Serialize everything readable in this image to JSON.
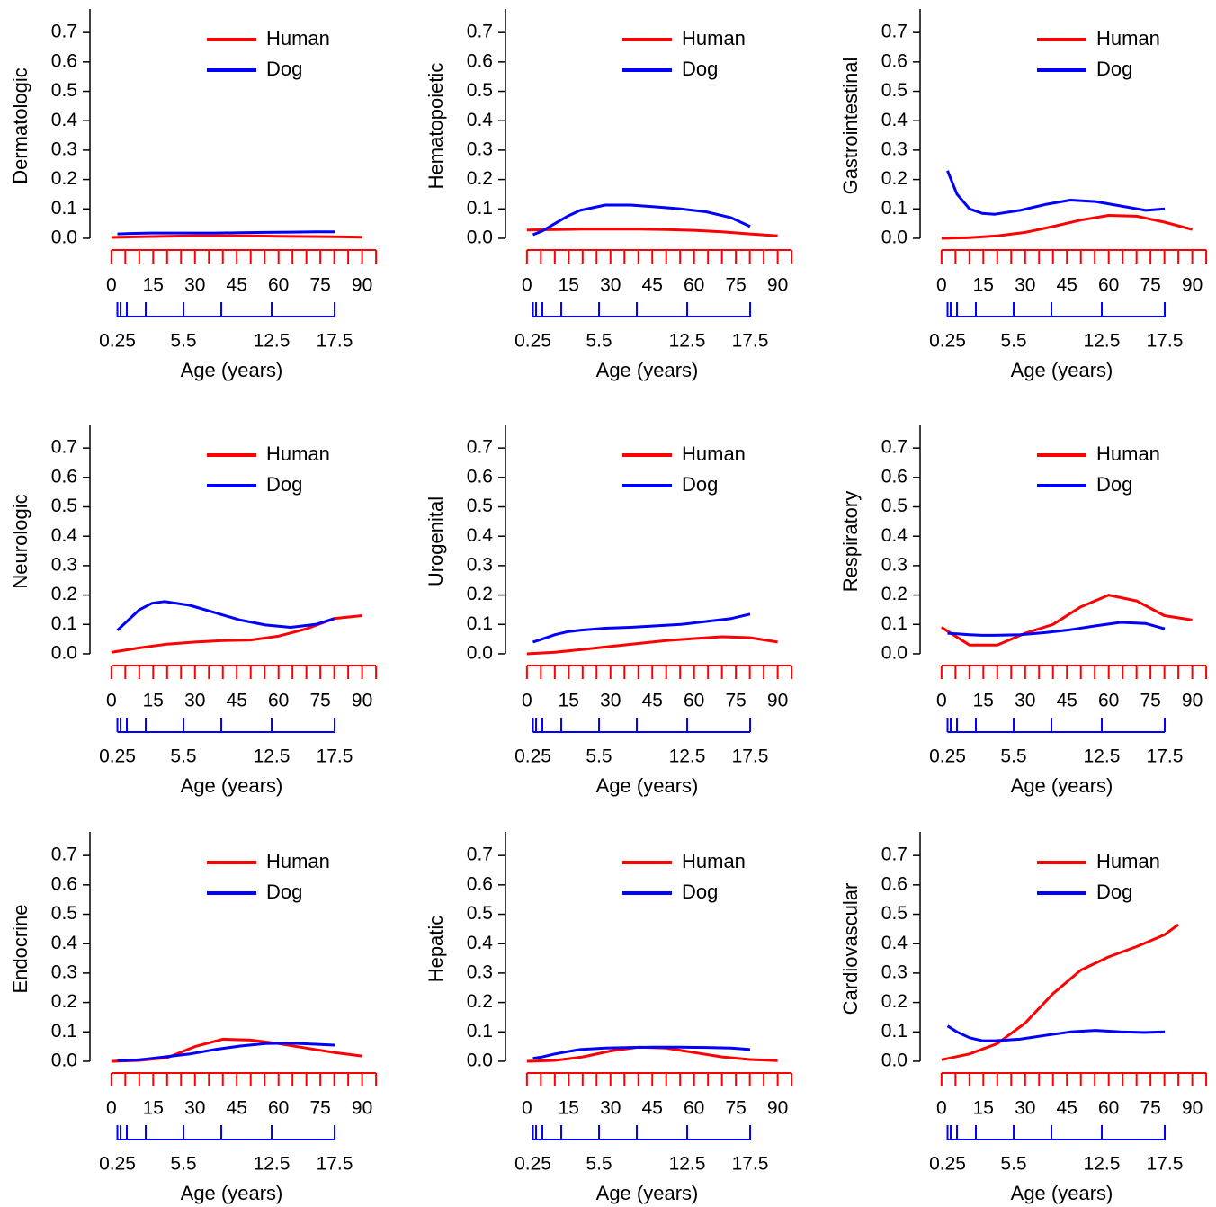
{
  "chart_data": [
    {
      "type": "line",
      "ylabel": "Dermatologic",
      "xlabel": "Age (years)",
      "legend": "top-right",
      "ylim": [
        -0.02,
        0.78
      ],
      "yticks": [
        {
          "value": 0,
          "label": "0.0"
        },
        0.1,
        0.2,
        0.3,
        0.4,
        0.5,
        0.6,
        0.7
      ],
      "xlim": [
        -7.7,
        94
      ],
      "xticks": [
        0,
        15,
        30,
        45,
        60,
        75,
        90
      ],
      "xminor_ticks": [
        5,
        10,
        20,
        25,
        35,
        40,
        50,
        55,
        65,
        70,
        80,
        85,
        95
      ],
      "x2lim": [
        -1.93,
        20.57
      ],
      "x2ticks": [
        0.25,
        5.5,
        12.5,
        17.5
      ],
      "x2minor_ticks": [
        0.5,
        1,
        2.5,
        8.5
      ],
      "series": [
        {
          "name": "Human",
          "color": "#ff0000",
          "x": [
            0,
            10,
            20,
            30,
            40,
            50,
            60,
            70,
            80,
            90
          ],
          "values": [
            0.003,
            0.005,
            0.007,
            0.008,
            0.008,
            0.008,
            0.007,
            0.006,
            0.005,
            0.004
          ]
        },
        {
          "name": "Dog",
          "color": "#0000ff",
          "axis": "x2",
          "x": [
            0.25,
            1,
            2,
            3,
            4,
            6,
            8,
            10,
            12,
            14,
            16,
            17.5
          ],
          "values": [
            0.015,
            0.016,
            0.017,
            0.018,
            0.018,
            0.018,
            0.018,
            0.019,
            0.02,
            0.021,
            0.022,
            0.022
          ]
        }
      ]
    },
    {
      "type": "line",
      "ylabel": "Hematopoietic",
      "xlabel": "Age (years)",
      "legend": "top-right",
      "ylim": [
        -0.02,
        0.78
      ],
      "yticks": [
        {
          "value": 0,
          "label": "0.0"
        },
        0.1,
        0.2,
        0.3,
        0.4,
        0.5,
        0.6,
        0.7
      ],
      "xlim": [
        -7.7,
        94
      ],
      "xticks": [
        0,
        15,
        30,
        45,
        60,
        75,
        90
      ],
      "xminor_ticks": [
        5,
        10,
        20,
        25,
        35,
        40,
        50,
        55,
        65,
        70,
        80,
        85,
        95
      ],
      "x2lim": [
        -1.93,
        20.57
      ],
      "x2ticks": [
        0.25,
        5.5,
        12.5,
        17.5
      ],
      "x2minor_ticks": [
        0.5,
        1,
        2.5,
        8.5
      ],
      "series": [
        {
          "name": "Human",
          "color": "#ff0000",
          "x": [
            0,
            10,
            20,
            30,
            40,
            50,
            60,
            70,
            80,
            90
          ],
          "values": [
            0.028,
            0.03,
            0.031,
            0.031,
            0.031,
            0.03,
            0.027,
            0.022,
            0.015,
            0.008
          ]
        },
        {
          "name": "Dog",
          "color": "#0000ff",
          "axis": "x2",
          "x": [
            0.25,
            1,
            2,
            3,
            4,
            6,
            8,
            10,
            12,
            14,
            16,
            17.5
          ],
          "values": [
            0.012,
            0.025,
            0.05,
            0.075,
            0.095,
            0.113,
            0.113,
            0.107,
            0.1,
            0.09,
            0.07,
            0.04
          ]
        }
      ]
    },
    {
      "type": "line",
      "ylabel": "Gastrointestinal",
      "xlabel": "Age (years)",
      "legend": "top-right",
      "ylim": [
        -0.02,
        0.78
      ],
      "yticks": [
        {
          "value": 0,
          "label": "0.0"
        },
        0.1,
        0.2,
        0.3,
        0.4,
        0.5,
        0.6,
        0.7
      ],
      "xlim": [
        -7.7,
        94
      ],
      "xticks": [
        0,
        15,
        30,
        45,
        60,
        75,
        90
      ],
      "xminor_ticks": [
        5,
        10,
        20,
        25,
        35,
        40,
        50,
        55,
        65,
        70,
        80,
        85,
        95
      ],
      "x2lim": [
        -1.93,
        20.57
      ],
      "x2ticks": [
        0.25,
        5.5,
        12.5,
        17.5
      ],
      "x2minor_ticks": [
        0.5,
        1,
        2.5,
        8.5
      ],
      "series": [
        {
          "name": "Human",
          "color": "#ff0000",
          "x": [
            0,
            10,
            20,
            30,
            40,
            50,
            60,
            70,
            80,
            90
          ],
          "values": [
            0,
            0.002,
            0.008,
            0.02,
            0.04,
            0.062,
            0.078,
            0.075,
            0.055,
            0.03
          ]
        },
        {
          "name": "Dog",
          "color": "#0000ff",
          "axis": "x2",
          "x": [
            0.25,
            1,
            2,
            3,
            4,
            6,
            8,
            10,
            12,
            14,
            16,
            17.5
          ],
          "values": [
            0.23,
            0.15,
            0.1,
            0.085,
            0.082,
            0.095,
            0.115,
            0.13,
            0.125,
            0.11,
            0.095,
            0.1
          ]
        }
      ]
    },
    {
      "type": "line",
      "ylabel": "Neurologic",
      "xlabel": "Age (years)",
      "legend": "top-right",
      "ylim": [
        -0.02,
        0.78
      ],
      "yticks": [
        {
          "value": 0,
          "label": "0.0"
        },
        0.1,
        0.2,
        0.3,
        0.4,
        0.5,
        0.6,
        0.7
      ],
      "xlim": [
        -7.7,
        94
      ],
      "xticks": [
        0,
        15,
        30,
        45,
        60,
        75,
        90
      ],
      "xminor_ticks": [
        5,
        10,
        20,
        25,
        35,
        40,
        50,
        55,
        65,
        70,
        80,
        85,
        95
      ],
      "x2lim": [
        -1.93,
        20.57
      ],
      "x2ticks": [
        0.25,
        5.5,
        12.5,
        17.5
      ],
      "x2minor_ticks": [
        0.5,
        1,
        2.5,
        8.5
      ],
      "series": [
        {
          "name": "Human",
          "color": "#ff0000",
          "x": [
            0,
            10,
            20,
            30,
            40,
            50,
            60,
            70,
            80,
            90
          ],
          "values": [
            0.005,
            0.02,
            0.033,
            0.04,
            0.045,
            0.047,
            0.06,
            0.085,
            0.12,
            0.13
          ]
        },
        {
          "name": "Dog",
          "color": "#0000ff",
          "axis": "x2",
          "x": [
            0.25,
            1,
            2,
            3,
            4,
            6,
            8,
            10,
            12,
            14,
            16,
            17.5
          ],
          "values": [
            0.08,
            0.11,
            0.15,
            0.172,
            0.178,
            0.165,
            0.14,
            0.115,
            0.098,
            0.09,
            0.1,
            0.12
          ]
        }
      ]
    },
    {
      "type": "line",
      "ylabel": "Urogenital",
      "xlabel": "Age (years)",
      "legend": "top-right",
      "ylim": [
        -0.02,
        0.78
      ],
      "yticks": [
        {
          "value": 0,
          "label": "0.0"
        },
        0.1,
        0.2,
        0.3,
        0.4,
        0.5,
        0.6,
        0.7
      ],
      "xlim": [
        -7.7,
        94
      ],
      "xticks": [
        0,
        15,
        30,
        45,
        60,
        75,
        90
      ],
      "xminor_ticks": [
        5,
        10,
        20,
        25,
        35,
        40,
        50,
        55,
        65,
        70,
        80,
        85,
        95
      ],
      "x2lim": [
        -1.93,
        20.57
      ],
      "x2ticks": [
        0.25,
        5.5,
        12.5,
        17.5
      ],
      "x2minor_ticks": [
        0.5,
        1,
        2.5,
        8.5
      ],
      "series": [
        {
          "name": "Human",
          "color": "#ff0000",
          "x": [
            0,
            10,
            20,
            30,
            40,
            50,
            60,
            70,
            80,
            90
          ],
          "values": [
            0,
            0.005,
            0.015,
            0.025,
            0.035,
            0.045,
            0.052,
            0.058,
            0.055,
            0.04
          ]
        },
        {
          "name": "Dog",
          "color": "#0000ff",
          "axis": "x2",
          "x": [
            0.25,
            1,
            2,
            3,
            4,
            6,
            8,
            10,
            12,
            14,
            16,
            17.5
          ],
          "values": [
            0.04,
            0.05,
            0.065,
            0.075,
            0.08,
            0.087,
            0.09,
            0.095,
            0.1,
            0.11,
            0.12,
            0.135
          ]
        }
      ]
    },
    {
      "type": "line",
      "ylabel": "Respiratory",
      "xlabel": "Age (years)",
      "legend": "top-right",
      "ylim": [
        -0.02,
        0.78
      ],
      "yticks": [
        {
          "value": 0,
          "label": "0.0"
        },
        0.1,
        0.2,
        0.3,
        0.4,
        0.5,
        0.6,
        0.7
      ],
      "xlim": [
        -7.7,
        94
      ],
      "xticks": [
        0,
        15,
        30,
        45,
        60,
        75,
        90
      ],
      "xminor_ticks": [
        5,
        10,
        20,
        25,
        35,
        40,
        50,
        55,
        65,
        70,
        80,
        85,
        95
      ],
      "x2lim": [
        -1.93,
        20.57
      ],
      "x2ticks": [
        0.25,
        5.5,
        12.5,
        17.5
      ],
      "x2minor_ticks": [
        0.5,
        1,
        2.5,
        8.5
      ],
      "series": [
        {
          "name": "Human",
          "color": "#ff0000",
          "x": [
            0,
            10,
            20,
            30,
            40,
            50,
            60,
            70,
            80,
            90
          ],
          "values": [
            0.09,
            0.03,
            0.03,
            0.07,
            0.1,
            0.16,
            0.2,
            0.18,
            0.13,
            0.115
          ]
        },
        {
          "name": "Dog",
          "color": "#0000ff",
          "axis": "x2",
          "x": [
            0.25,
            1,
            2,
            3,
            4,
            6,
            8,
            10,
            12,
            14,
            16,
            17.5
          ],
          "values": [
            0.07,
            0.068,
            0.065,
            0.063,
            0.063,
            0.065,
            0.072,
            0.082,
            0.095,
            0.107,
            0.103,
            0.085
          ]
        }
      ]
    },
    {
      "type": "line",
      "ylabel": "Endocrine",
      "xlabel": "Age (years)",
      "legend": "top-right",
      "ylim": [
        -0.02,
        0.78
      ],
      "yticks": [
        {
          "value": 0,
          "label": "0.0"
        },
        0.1,
        0.2,
        0.3,
        0.4,
        0.5,
        0.6,
        0.7
      ],
      "xlim": [
        -7.7,
        94
      ],
      "xticks": [
        0,
        15,
        30,
        45,
        60,
        75,
        90
      ],
      "xminor_ticks": [
        5,
        10,
        20,
        25,
        35,
        40,
        50,
        55,
        65,
        70,
        80,
        85,
        95
      ],
      "x2lim": [
        -1.93,
        20.57
      ],
      "x2ticks": [
        0.25,
        5.5,
        12.5,
        17.5
      ],
      "x2minor_ticks": [
        0.5,
        1,
        2.5,
        8.5
      ],
      "series": [
        {
          "name": "Human",
          "color": "#ff0000",
          "x": [
            0,
            10,
            20,
            30,
            40,
            50,
            60,
            70,
            80,
            90
          ],
          "values": [
            0,
            0.003,
            0.012,
            0.05,
            0.075,
            0.072,
            0.06,
            0.045,
            0.03,
            0.018
          ]
        },
        {
          "name": "Dog",
          "color": "#0000ff",
          "axis": "x2",
          "x": [
            0.25,
            1,
            2,
            3,
            4,
            6,
            8,
            10,
            12,
            14,
            16,
            17.5
          ],
          "values": [
            0.002,
            0.003,
            0.005,
            0.01,
            0.015,
            0.025,
            0.04,
            0.052,
            0.06,
            0.062,
            0.058,
            0.055
          ]
        }
      ]
    },
    {
      "type": "line",
      "ylabel": "Hepatic",
      "xlabel": "Age (years)",
      "legend": "top-right",
      "ylim": [
        -0.02,
        0.78
      ],
      "yticks": [
        {
          "value": 0,
          "label": "0.0"
        },
        0.1,
        0.2,
        0.3,
        0.4,
        0.5,
        0.6,
        0.7
      ],
      "xlim": [
        -7.7,
        94
      ],
      "xticks": [
        0,
        15,
        30,
        45,
        60,
        75,
        90
      ],
      "xminor_ticks": [
        5,
        10,
        20,
        25,
        35,
        40,
        50,
        55,
        65,
        70,
        80,
        85,
        95
      ],
      "x2lim": [
        -1.93,
        20.57
      ],
      "x2ticks": [
        0.25,
        5.5,
        12.5,
        17.5
      ],
      "x2minor_ticks": [
        0.5,
        1,
        2.5,
        8.5
      ],
      "series": [
        {
          "name": "Human",
          "color": "#ff0000",
          "x": [
            0,
            10,
            20,
            30,
            40,
            50,
            60,
            70,
            80,
            90
          ],
          "values": [
            0,
            0.003,
            0.015,
            0.035,
            0.048,
            0.045,
            0.03,
            0.015,
            0.006,
            0.002
          ]
        },
        {
          "name": "Dog",
          "color": "#0000ff",
          "axis": "x2",
          "x": [
            0.25,
            1,
            2,
            3,
            4,
            6,
            8,
            10,
            12,
            14,
            16,
            17.5
          ],
          "values": [
            0.01,
            0.015,
            0.025,
            0.033,
            0.04,
            0.045,
            0.047,
            0.048,
            0.048,
            0.047,
            0.045,
            0.04
          ]
        }
      ]
    },
    {
      "type": "line",
      "ylabel": "Cardiovascular",
      "xlabel": "Age (years)",
      "legend": "top-right",
      "ylim": [
        -0.02,
        0.78
      ],
      "yticks": [
        {
          "value": 0,
          "label": "0.0"
        },
        0.1,
        0.2,
        0.3,
        0.4,
        0.5,
        0.6,
        0.7
      ],
      "xlim": [
        -7.7,
        94
      ],
      "xticks": [
        0,
        15,
        30,
        45,
        60,
        75,
        90
      ],
      "xminor_ticks": [
        5,
        10,
        20,
        25,
        35,
        40,
        50,
        55,
        65,
        70,
        80,
        85,
        95
      ],
      "x2lim": [
        -1.93,
        20.57
      ],
      "x2ticks": [
        0.25,
        5.5,
        12.5,
        17.5
      ],
      "x2minor_ticks": [
        0.5,
        1,
        2.5,
        8.5
      ],
      "series": [
        {
          "name": "Human",
          "color": "#ff0000",
          "x": [
            0,
            10,
            20,
            30,
            40,
            50,
            60,
            70,
            80,
            85
          ],
          "values": [
            0.005,
            0.025,
            0.06,
            0.13,
            0.23,
            0.31,
            0.355,
            0.39,
            0.43,
            0.465
          ]
        },
        {
          "name": "Dog",
          "color": "#0000ff",
          "axis": "x2",
          "x": [
            0.25,
            1,
            2,
            3,
            4,
            6,
            8,
            10,
            12,
            14,
            16,
            17.5
          ],
          "values": [
            0.12,
            0.1,
            0.08,
            0.07,
            0.07,
            0.075,
            0.088,
            0.1,
            0.105,
            0.1,
            0.098,
            0.1
          ]
        }
      ]
    }
  ]
}
